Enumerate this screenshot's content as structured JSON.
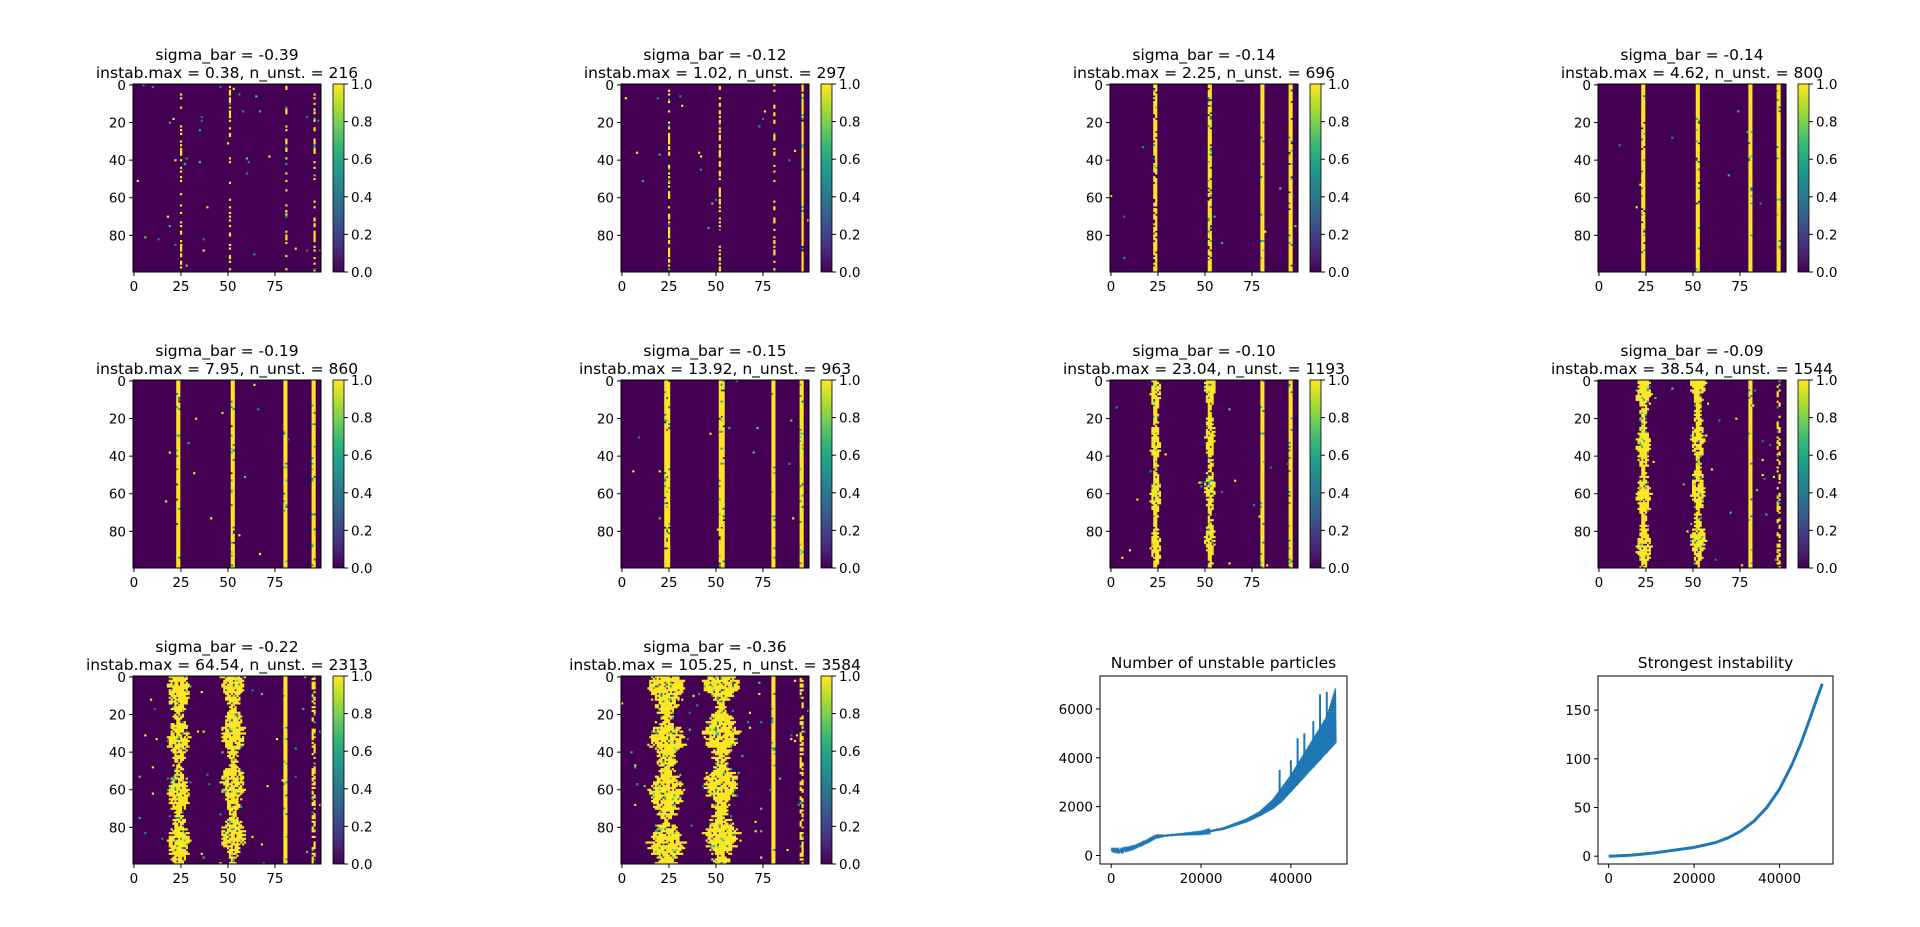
{
  "figure": {
    "colorbar_ticks": [
      "0.0",
      "0.2",
      "0.4",
      "0.6",
      "0.8",
      "1.0"
    ],
    "colormap": "viridis",
    "low_color": "#440154",
    "high_color": "#fde725",
    "line_color": "#1f77b4"
  },
  "chart_data": [
    {
      "type": "heatmap",
      "title_line1": "sigma_bar = -0.39",
      "title_line2": "instab.max = 0.38, n_unst. = 216",
      "x_ticks": [
        "0",
        "25",
        "50",
        "75"
      ],
      "y_ticks": [
        "0",
        "20",
        "40",
        "60",
        "80"
      ],
      "grid_size": [
        100,
        100
      ],
      "value_range": [
        0,
        1
      ],
      "columns": [
        {
          "x": 25,
          "width": 1,
          "density": 0.35
        },
        {
          "x": 51,
          "width": 1,
          "density": 0.35
        },
        {
          "x": 81,
          "width": 1,
          "density": 0.3
        },
        {
          "x": 96,
          "width": 1,
          "density": 0.45
        }
      ],
      "scatter_density": 0.004
    },
    {
      "type": "heatmap",
      "title_line1": "sigma_bar = -0.12",
      "title_line2": "instab.max = 1.02, n_unst. = 297",
      "x_ticks": [
        "0",
        "25",
        "50",
        "75"
      ],
      "y_ticks": [
        "0",
        "20",
        "40",
        "60",
        "80"
      ],
      "grid_size": [
        100,
        100
      ],
      "value_range": [
        0,
        1
      ],
      "columns": [
        {
          "x": 25,
          "width": 1,
          "density": 0.55
        },
        {
          "x": 52,
          "width": 1,
          "density": 0.55
        },
        {
          "x": 81,
          "width": 1,
          "density": 0.35
        },
        {
          "x": 96,
          "width": 1,
          "density": 0.95
        }
      ],
      "scatter_density": 0.002
    },
    {
      "type": "heatmap",
      "title_line1": "sigma_bar = -0.14",
      "title_line2": "instab.max = 2.25, n_unst. = 696",
      "x_ticks": [
        "0",
        "25",
        "50",
        "75"
      ],
      "y_ticks": [
        "0",
        "20",
        "40",
        "60",
        "80"
      ],
      "grid_size": [
        100,
        100
      ],
      "value_range": [
        0,
        1
      ],
      "columns": [
        {
          "x": 24,
          "width": 2,
          "density": 0.85
        },
        {
          "x": 53,
          "width": 2,
          "density": 0.85
        },
        {
          "x": 81,
          "width": 2,
          "density": 1.0
        },
        {
          "x": 96,
          "width": 2,
          "density": 0.95
        }
      ],
      "scatter_density": 0.001
    },
    {
      "type": "heatmap",
      "title_line1": "sigma_bar = -0.14",
      "title_line2": "instab.max = 4.62, n_unst. = 800",
      "x_ticks": [
        "0",
        "25",
        "50",
        "75"
      ],
      "y_ticks": [
        "0",
        "20",
        "40",
        "60",
        "80"
      ],
      "grid_size": [
        100,
        100
      ],
      "value_range": [
        0,
        1
      ],
      "columns": [
        {
          "x": 24,
          "width": 2,
          "density": 0.95
        },
        {
          "x": 53,
          "width": 2,
          "density": 0.95
        },
        {
          "x": 81,
          "width": 2,
          "density": 1.0
        },
        {
          "x": 96,
          "width": 2,
          "density": 1.0
        }
      ],
      "scatter_density": 0.001
    },
    {
      "type": "heatmap",
      "title_line1": "sigma_bar = -0.19",
      "title_line2": "instab.max = 7.95, n_unst. = 860",
      "x_ticks": [
        "0",
        "25",
        "50",
        "75"
      ],
      "y_ticks": [
        "0",
        "20",
        "40",
        "60",
        "80"
      ],
      "grid_size": [
        100,
        100
      ],
      "value_range": [
        0,
        1
      ],
      "columns": [
        {
          "x": 24,
          "width": 2,
          "density": 0.98
        },
        {
          "x": 53,
          "width": 2,
          "density": 0.98
        },
        {
          "x": 81,
          "width": 2,
          "density": 1.0
        },
        {
          "x": 96,
          "width": 2,
          "density": 1.0
        }
      ],
      "scatter_density": 0.0015
    },
    {
      "type": "heatmap",
      "title_line1": "sigma_bar = -0.15",
      "title_line2": "instab.max = 13.92, n_unst. = 963",
      "x_ticks": [
        "0",
        "25",
        "50",
        "75"
      ],
      "y_ticks": [
        "0",
        "20",
        "40",
        "60",
        "80"
      ],
      "grid_size": [
        100,
        100
      ],
      "value_range": [
        0,
        1
      ],
      "columns": [
        {
          "x": 24,
          "width": 3,
          "density": 0.95
        },
        {
          "x": 53,
          "width": 3,
          "density": 0.95
        },
        {
          "x": 81,
          "width": 2,
          "density": 1.0
        },
        {
          "x": 96,
          "width": 2,
          "density": 1.0
        }
      ],
      "scatter_density": 0.0015
    },
    {
      "type": "heatmap",
      "title_line1": "sigma_bar = -0.10",
      "title_line2": "instab.max = 23.04, n_unst. = 1193",
      "x_ticks": [
        "0",
        "25",
        "50",
        "75"
      ],
      "y_ticks": [
        "0",
        "20",
        "40",
        "60",
        "80"
      ],
      "grid_size": [
        100,
        100
      ],
      "value_range": [
        0,
        1
      ],
      "columns": [
        {
          "x": 24,
          "width": 5,
          "density": 0.92
        },
        {
          "x": 53,
          "width": 5,
          "density": 0.92
        },
        {
          "x": 81,
          "width": 2,
          "density": 1.0
        },
        {
          "x": 96,
          "width": 2,
          "density": 1.0
        }
      ],
      "scatter_density": 0.002
    },
    {
      "type": "heatmap",
      "title_line1": "sigma_bar = -0.09",
      "title_line2": "instab.max = 38.54, n_unst. = 1544",
      "x_ticks": [
        "0",
        "25",
        "50",
        "75"
      ],
      "y_ticks": [
        "0",
        "20",
        "40",
        "60",
        "80"
      ],
      "grid_size": [
        100,
        100
      ],
      "value_range": [
        0,
        1
      ],
      "columns": [
        {
          "x": 24,
          "width": 7,
          "density": 0.9
        },
        {
          "x": 53,
          "width": 7,
          "density": 0.9
        },
        {
          "x": 81,
          "width": 2,
          "density": 1.0
        },
        {
          "x": 96,
          "width": 2,
          "density": 0.4
        }
      ],
      "scatter_density": 0.003
    },
    {
      "type": "heatmap",
      "title_line1": "sigma_bar = -0.22",
      "title_line2": "instab.max = 64.54, n_unst. = 2313",
      "x_ticks": [
        "0",
        "25",
        "50",
        "75"
      ],
      "y_ticks": [
        "0",
        "20",
        "40",
        "60",
        "80"
      ],
      "grid_size": [
        100,
        100
      ],
      "value_range": [
        0,
        1
      ],
      "columns": [
        {
          "x": 24,
          "width": 11,
          "density": 0.9
        },
        {
          "x": 53,
          "width": 11,
          "density": 0.9
        },
        {
          "x": 81,
          "width": 2,
          "density": 1.0
        },
        {
          "x": 96,
          "width": 2,
          "density": 0.5
        }
      ],
      "scatter_density": 0.005
    },
    {
      "type": "heatmap",
      "title_line1": "sigma_bar = -0.36",
      "title_line2": "instab.max = 105.25, n_unst. = 3584",
      "x_ticks": [
        "0",
        "25",
        "50",
        "75"
      ],
      "y_ticks": [
        "0",
        "20",
        "40",
        "60",
        "80"
      ],
      "grid_size": [
        100,
        100
      ],
      "value_range": [
        0,
        1
      ],
      "columns": [
        {
          "x": 24,
          "width": 17,
          "density": 0.9
        },
        {
          "x": 53,
          "width": 17,
          "density": 0.9
        },
        {
          "x": 81,
          "width": 2,
          "density": 1.0
        },
        {
          "x": 96,
          "width": 2,
          "density": 0.5
        }
      ],
      "scatter_density": 0.006
    },
    {
      "type": "line",
      "title": "Number of unstable particles",
      "x_ticks": [
        "0",
        "20000",
        "40000"
      ],
      "y_ticks": [
        "0",
        "2000",
        "4000",
        "6000"
      ],
      "xlim": [
        -2500,
        52500
      ],
      "ylim": [
        -350,
        7350
      ],
      "x": [
        0,
        2000,
        5000,
        8000,
        10000,
        12000,
        15000,
        20000,
        25000,
        30000,
        33000,
        36000,
        38000,
        40000,
        42000,
        44000,
        46000,
        48000,
        50000
      ],
      "y_low": [
        200,
        150,
        300,
        550,
        750,
        800,
        850,
        900,
        1050,
        1350,
        1600,
        1900,
        2200,
        2600,
        3000,
        3400,
        3800,
        4200,
        4600
      ],
      "y_high": [
        250,
        220,
        350,
        600,
        800,
        820,
        870,
        950,
        1150,
        1500,
        1800,
        2300,
        2800,
        3300,
        3900,
        4500,
        5100,
        5700,
        6900
      ],
      "spikes": [
        {
          "x": 37500,
          "y": 3500
        },
        {
          "x": 40000,
          "y": 3900
        },
        {
          "x": 41500,
          "y": 4800
        },
        {
          "x": 43000,
          "y": 5000
        },
        {
          "x": 45000,
          "y": 5500
        },
        {
          "x": 46500,
          "y": 6600
        },
        {
          "x": 48000,
          "y": 6700
        }
      ]
    },
    {
      "type": "line",
      "title": "Strongest instability",
      "x_ticks": [
        "0",
        "20000",
        "40000"
      ],
      "y_ticks": [
        "0",
        "50",
        "100",
        "150"
      ],
      "xlim": [
        -2500,
        52500
      ],
      "ylim": [
        -8,
        185
      ],
      "x": [
        0,
        5000,
        10000,
        15000,
        20000,
        25000,
        28000,
        31000,
        34000,
        37000,
        40000,
        43000,
        45000,
        47000,
        49000,
        50000
      ],
      "y": [
        0,
        1,
        3,
        6,
        9,
        14,
        19,
        26,
        36,
        50,
        69,
        95,
        116,
        140,
        165,
        177
      ]
    }
  ]
}
